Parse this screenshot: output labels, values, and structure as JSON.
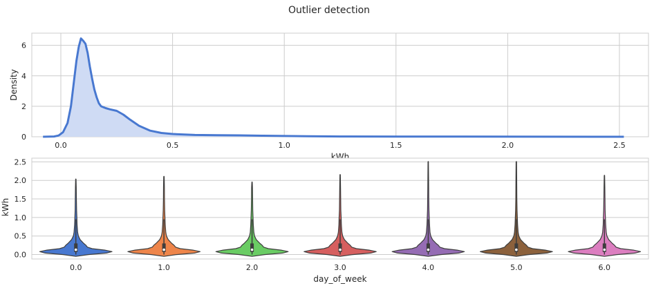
{
  "figure": {
    "title": "Outlier detection"
  },
  "chart_data": [
    {
      "type": "area",
      "subtype": "kde",
      "xlabel": "kWh",
      "ylabel": "Density",
      "xlim": [
        -0.13,
        2.63
      ],
      "ylim": [
        0,
        6.8
      ],
      "xticks": [
        "0.0",
        "0.5",
        "1.0",
        "1.5",
        "2.0",
        "2.5"
      ],
      "yticks": [
        "0",
        "2",
        "4",
        "6"
      ],
      "grid": true,
      "color": "#4878d0",
      "fill_color": "#cfdbf4",
      "points": [
        [
          -0.08,
          0.0
        ],
        [
          -0.03,
          0.02
        ],
        [
          -0.01,
          0.08
        ],
        [
          0.01,
          0.3
        ],
        [
          0.03,
          0.9
        ],
        [
          0.045,
          2.0
        ],
        [
          0.06,
          3.8
        ],
        [
          0.07,
          5.0
        ],
        [
          0.08,
          5.9
        ],
        [
          0.09,
          6.45
        ],
        [
          0.1,
          6.3
        ],
        [
          0.11,
          6.1
        ],
        [
          0.12,
          5.5
        ],
        [
          0.13,
          4.6
        ],
        [
          0.14,
          3.8
        ],
        [
          0.15,
          3.1
        ],
        [
          0.16,
          2.6
        ],
        [
          0.17,
          2.2
        ],
        [
          0.18,
          2.0
        ],
        [
          0.2,
          1.88
        ],
        [
          0.22,
          1.8
        ],
        [
          0.25,
          1.7
        ],
        [
          0.28,
          1.45
        ],
        [
          0.31,
          1.12
        ],
        [
          0.35,
          0.72
        ],
        [
          0.4,
          0.4
        ],
        [
          0.45,
          0.25
        ],
        [
          0.5,
          0.18
        ],
        [
          0.6,
          0.12
        ],
        [
          0.7,
          0.1
        ],
        [
          0.8,
          0.09
        ],
        [
          0.9,
          0.07
        ],
        [
          1.0,
          0.05
        ],
        [
          1.1,
          0.03
        ],
        [
          1.25,
          0.02
        ],
        [
          1.5,
          0.01
        ],
        [
          1.8,
          0.01
        ],
        [
          2.1,
          0.005
        ],
        [
          2.4,
          0.0
        ],
        [
          2.52,
          0.0
        ]
      ]
    },
    {
      "type": "violin",
      "xlabel": "day_of_week",
      "ylabel": "kWh",
      "ylim": [
        -0.12,
        2.6
      ],
      "yticks": [
        "0.0",
        "0.5",
        "1.0",
        "1.5",
        "2.0",
        "2.5"
      ],
      "grid": true,
      "categories": [
        "0.0",
        "1.0",
        "2.0",
        "3.0",
        "4.0",
        "5.0",
        "6.0"
      ],
      "series": [
        {
          "color": "#4878d0",
          "max": 2.03,
          "median": 0.13,
          "q1": 0.07,
          "q3": 0.3
        },
        {
          "color": "#ee854a",
          "max": 2.1,
          "median": 0.13,
          "q1": 0.07,
          "q3": 0.3
        },
        {
          "color": "#6acc64",
          "max": 1.95,
          "median": 0.13,
          "q1": 0.07,
          "q3": 0.3
        },
        {
          "color": "#d65f5f",
          "max": 2.15,
          "median": 0.13,
          "q1": 0.07,
          "q3": 0.3
        },
        {
          "color": "#956cb4",
          "max": 2.5,
          "median": 0.13,
          "q1": 0.07,
          "q3": 0.3
        },
        {
          "color": "#8c613c",
          "max": 2.5,
          "median": 0.13,
          "q1": 0.07,
          "q3": 0.3
        },
        {
          "color": "#dc7ec0",
          "max": 2.13,
          "median": 0.13,
          "q1": 0.07,
          "q3": 0.3
        }
      ],
      "density_shape": [
        [
          -0.05,
          0.0
        ],
        [
          0.0,
          0.35
        ],
        [
          0.04,
          0.85
        ],
        [
          0.08,
          1.0
        ],
        [
          0.12,
          0.8
        ],
        [
          0.16,
          0.45
        ],
        [
          0.2,
          0.32
        ],
        [
          0.25,
          0.28
        ],
        [
          0.3,
          0.22
        ],
        [
          0.4,
          0.12
        ],
        [
          0.5,
          0.07
        ],
        [
          0.6,
          0.05
        ],
        [
          0.8,
          0.035
        ],
        [
          1.0,
          0.028
        ],
        [
          1.2,
          0.02
        ],
        [
          1.5,
          0.015
        ],
        [
          1.8,
          0.012
        ],
        [
          1.0001,
          0.012
        ]
      ]
    }
  ]
}
